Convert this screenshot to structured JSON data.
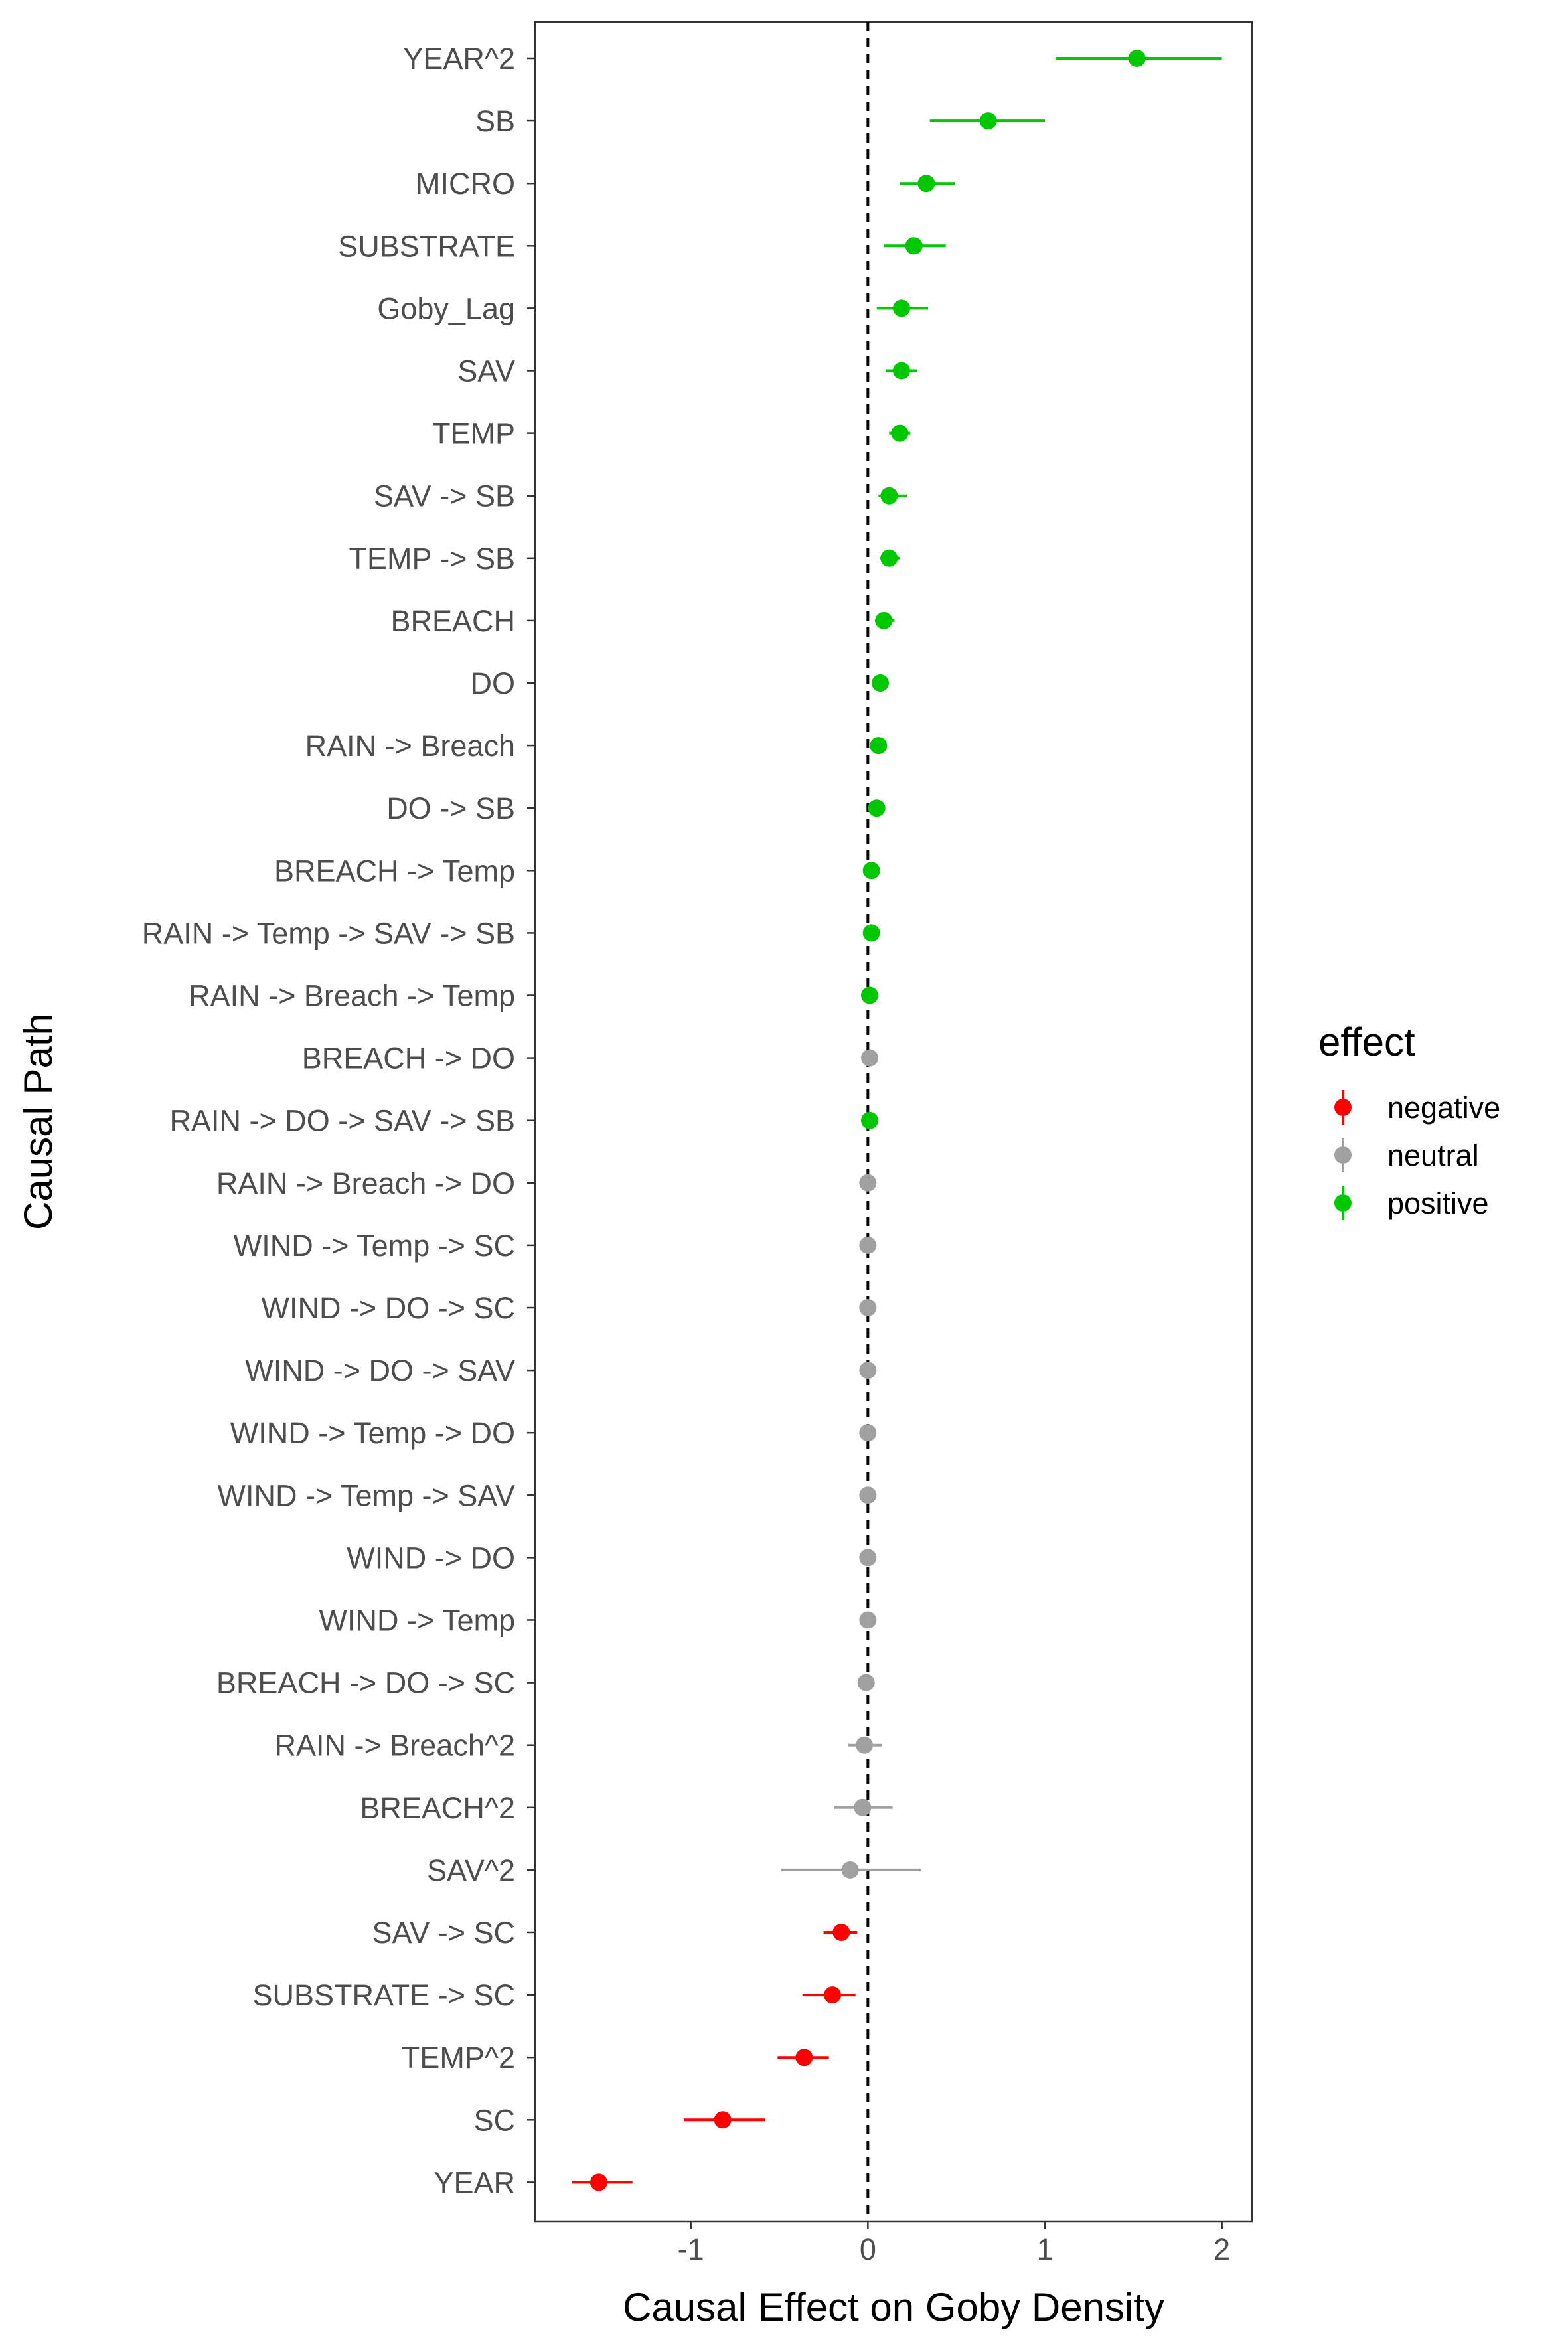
{
  "chart_data": {
    "type": "scatter",
    "subtype": "pointrange",
    "title": "",
    "xlabel": "Causal Effect on Goby Density",
    "ylabel": "Causal Path",
    "xlim": [
      -1.88,
      2.17
    ],
    "xticks": [
      -1,
      0,
      1,
      2
    ],
    "xtick_labels": [
      "-1",
      "0",
      "1",
      "2"
    ],
    "reference_line": {
      "x": 0,
      "style": "dashed"
    },
    "grid": false,
    "legend": {
      "title": "effect",
      "position": "right",
      "entries": [
        {
          "label": "negative",
          "color": "#FF0000"
        },
        {
          "label": "neutral",
          "color": "#A0A0A0"
        },
        {
          "label": "positive",
          "color": "#00C800"
        }
      ]
    },
    "points": [
      {
        "label": "YEAR^2",
        "estimate": 1.52,
        "low": 1.06,
        "high": 2.0,
        "effect": "positive"
      },
      {
        "label": "SB",
        "estimate": 0.68,
        "low": 0.35,
        "high": 1.0,
        "effect": "positive"
      },
      {
        "label": "MICRO",
        "estimate": 0.33,
        "low": 0.18,
        "high": 0.49,
        "effect": "positive"
      },
      {
        "label": "SUBSTRATE",
        "estimate": 0.26,
        "low": 0.09,
        "high": 0.44,
        "effect": "positive"
      },
      {
        "label": "Goby_Lag",
        "estimate": 0.19,
        "low": 0.05,
        "high": 0.34,
        "effect": "positive"
      },
      {
        "label": "SAV",
        "estimate": 0.19,
        "low": 0.1,
        "high": 0.28,
        "effect": "positive"
      },
      {
        "label": "TEMP",
        "estimate": 0.18,
        "low": 0.12,
        "high": 0.24,
        "effect": "positive"
      },
      {
        "label": "SAV -> SB",
        "estimate": 0.12,
        "low": 0.06,
        "high": 0.22,
        "effect": "positive"
      },
      {
        "label": "TEMP -> SB",
        "estimate": 0.12,
        "low": 0.07,
        "high": 0.18,
        "effect": "positive"
      },
      {
        "label": "BREACH",
        "estimate": 0.09,
        "low": 0.04,
        "high": 0.15,
        "effect": "positive"
      },
      {
        "label": "DO",
        "estimate": 0.07,
        "low": 0.03,
        "high": 0.11,
        "effect": "positive"
      },
      {
        "label": "RAIN -> Breach",
        "estimate": 0.06,
        "low": 0.03,
        "high": 0.09,
        "effect": "positive"
      },
      {
        "label": "DO -> SB",
        "estimate": 0.05,
        "low": 0.02,
        "high": 0.08,
        "effect": "positive"
      },
      {
        "label": "BREACH -> Temp",
        "estimate": 0.02,
        "low": 0.0,
        "high": 0.04,
        "effect": "positive"
      },
      {
        "label": "RAIN -> Temp -> SAV -> SB",
        "estimate": 0.02,
        "low": 0.0,
        "high": 0.03,
        "effect": "positive"
      },
      {
        "label": "RAIN -> Breach -> Temp",
        "estimate": 0.01,
        "low": 0.0,
        "high": 0.03,
        "effect": "positive"
      },
      {
        "label": "BREACH -> DO",
        "estimate": 0.01,
        "low": -0.01,
        "high": 0.02,
        "effect": "neutral"
      },
      {
        "label": "RAIN -> DO -> SAV -> SB",
        "estimate": 0.01,
        "low": 0.0,
        "high": 0.02,
        "effect": "positive"
      },
      {
        "label": "RAIN -> Breach -> DO",
        "estimate": 0.0,
        "low": -0.01,
        "high": 0.01,
        "effect": "neutral"
      },
      {
        "label": "WIND -> Temp -> SC",
        "estimate": 0.0,
        "low": -0.01,
        "high": 0.01,
        "effect": "neutral"
      },
      {
        "label": "WIND -> DO -> SC",
        "estimate": 0.0,
        "low": -0.01,
        "high": 0.01,
        "effect": "neutral"
      },
      {
        "label": "WIND -> DO -> SAV",
        "estimate": 0.0,
        "low": -0.01,
        "high": 0.01,
        "effect": "neutral"
      },
      {
        "label": "WIND -> Temp -> DO",
        "estimate": 0.0,
        "low": -0.01,
        "high": 0.01,
        "effect": "neutral"
      },
      {
        "label": "WIND -> Temp -> SAV",
        "estimate": 0.0,
        "low": -0.01,
        "high": 0.01,
        "effect": "neutral"
      },
      {
        "label": "WIND -> DO",
        "estimate": 0.0,
        "low": -0.01,
        "high": 0.01,
        "effect": "neutral"
      },
      {
        "label": "WIND -> Temp",
        "estimate": 0.0,
        "low": -0.01,
        "high": 0.01,
        "effect": "neutral"
      },
      {
        "label": "BREACH -> DO -> SC",
        "estimate": -0.01,
        "low": -0.02,
        "high": 0.01,
        "effect": "neutral"
      },
      {
        "label": "RAIN -> Breach^2",
        "estimate": -0.02,
        "low": -0.11,
        "high": 0.08,
        "effect": "neutral"
      },
      {
        "label": "BREACH^2",
        "estimate": -0.03,
        "low": -0.19,
        "high": 0.14,
        "effect": "neutral"
      },
      {
        "label": "SAV^2",
        "estimate": -0.1,
        "low": -0.49,
        "high": 0.3,
        "effect": "neutral"
      },
      {
        "label": "SAV -> SC",
        "estimate": -0.15,
        "low": -0.25,
        "high": -0.06,
        "effect": "negative"
      },
      {
        "label": "SUBSTRATE -> SC",
        "estimate": -0.2,
        "low": -0.37,
        "high": -0.07,
        "effect": "negative"
      },
      {
        "label": "TEMP^2",
        "estimate": -0.36,
        "low": -0.51,
        "high": -0.22,
        "effect": "negative"
      },
      {
        "label": "SC",
        "estimate": -0.82,
        "low": -1.04,
        "high": -0.58,
        "effect": "negative"
      },
      {
        "label": "YEAR",
        "estimate": -1.52,
        "low": -1.67,
        "high": -1.33,
        "effect": "negative"
      }
    ]
  }
}
